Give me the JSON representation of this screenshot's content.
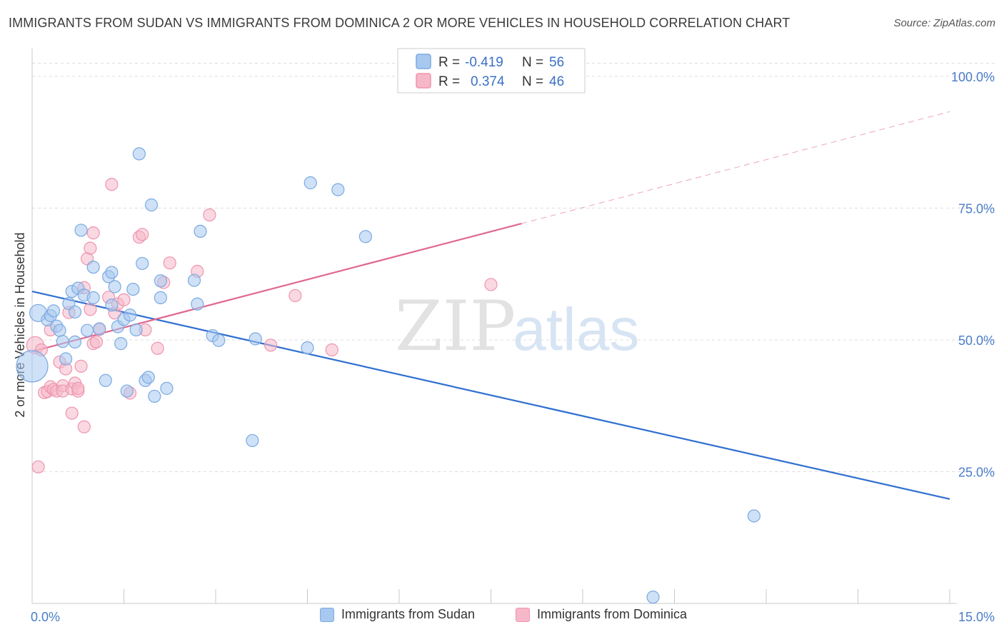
{
  "title": "IMMIGRANTS FROM SUDAN VS IMMIGRANTS FROM DOMINICA 2 OR MORE VEHICLES IN HOUSEHOLD CORRELATION CHART",
  "source": "Source: ZipAtlas.com",
  "watermark": {
    "zip": "ZIP",
    "atlas": "atlas"
  },
  "colors": {
    "sudan_fill": "#a8c8f0",
    "sudan_stroke": "#7aaae0",
    "sudan_line": "#2f6fd0",
    "dominica_fill": "#f6b8c8",
    "dominica_stroke": "#ee94ae",
    "dominica_line": "#e06890",
    "axis_text": "#4a7cc8",
    "grid": "#dddddd"
  },
  "legend": {
    "rows": [
      {
        "r_label": "R =",
        "r_value": "-0.419",
        "n_label": "N =",
        "n_value": "56"
      },
      {
        "r_label": "R =",
        "r_value": "0.374",
        "n_label": "N =",
        "n_value": "46"
      }
    ]
  },
  "bottom_legend": {
    "sudan": "Immigrants from Sudan",
    "dominica": "Immigrants from Dominica"
  },
  "chart_data": {
    "type": "scatter",
    "title": "IMMIGRANTS FROM SUDAN VS IMMIGRANTS FROM DOMINICA 2 OR MORE VEHICLES IN HOUSEHOLD CORRELATION CHART",
    "xlabel": "",
    "ylabel": "2 or more Vehicles in Household",
    "xlim": [
      0,
      15
    ],
    "ylim": [
      0,
      105
    ],
    "x_tick_labels": [
      "0.0%",
      "15.0%"
    ],
    "y_tick_labels": [
      "25.0%",
      "50.0%",
      "75.0%",
      "100.0%"
    ],
    "y_ticks": [
      25,
      50,
      75,
      100
    ],
    "grid": true,
    "legend_position": "top-center",
    "series": [
      {
        "name": "Immigrants from Sudan",
        "r": -0.419,
        "n": 56,
        "trend": {
          "x": [
            0,
            15
          ],
          "y": [
            59.2,
            19.8
          ],
          "dashed_after": null
        },
        "points": [
          {
            "x": 0.1,
            "y": 55.1,
            "big": 1
          },
          {
            "x": 0.0,
            "y": 45.0,
            "big": 2
          },
          {
            "x": 0.25,
            "y": 53.8
          },
          {
            "x": 0.3,
            "y": 54.6
          },
          {
            "x": 0.35,
            "y": 55.5
          },
          {
            "x": 0.4,
            "y": 52.6
          },
          {
            "x": 0.45,
            "y": 51.8
          },
          {
            "x": 0.5,
            "y": 49.7
          },
          {
            "x": 0.55,
            "y": 46.4
          },
          {
            "x": 0.6,
            "y": 56.9
          },
          {
            "x": 0.65,
            "y": 59.2
          },
          {
            "x": 0.7,
            "y": 55.3
          },
          {
            "x": 0.7,
            "y": 49.6
          },
          {
            "x": 0.75,
            "y": 59.8
          },
          {
            "x": 0.8,
            "y": 70.8
          },
          {
            "x": 0.85,
            "y": 58.5
          },
          {
            "x": 0.9,
            "y": 51.8
          },
          {
            "x": 1.0,
            "y": 58.0
          },
          {
            "x": 1.0,
            "y": 63.8
          },
          {
            "x": 1.1,
            "y": 52.1
          },
          {
            "x": 1.2,
            "y": 42.3
          },
          {
            "x": 1.25,
            "y": 62.0
          },
          {
            "x": 1.3,
            "y": 62.8
          },
          {
            "x": 1.3,
            "y": 56.6
          },
          {
            "x": 1.35,
            "y": 60.1
          },
          {
            "x": 1.4,
            "y": 52.5
          },
          {
            "x": 1.45,
            "y": 49.3
          },
          {
            "x": 1.5,
            "y": 53.9
          },
          {
            "x": 1.55,
            "y": 40.3
          },
          {
            "x": 1.6,
            "y": 54.7
          },
          {
            "x": 1.65,
            "y": 59.6
          },
          {
            "x": 1.7,
            "y": 51.9
          },
          {
            "x": 1.75,
            "y": 85.3
          },
          {
            "x": 1.8,
            "y": 64.5
          },
          {
            "x": 1.85,
            "y": 42.3
          },
          {
            "x": 1.9,
            "y": 42.9
          },
          {
            "x": 1.95,
            "y": 75.6
          },
          {
            "x": 2.0,
            "y": 39.3
          },
          {
            "x": 2.1,
            "y": 58.0
          },
          {
            "x": 2.1,
            "y": 61.2
          },
          {
            "x": 2.2,
            "y": 40.8
          },
          {
            "x": 2.65,
            "y": 61.3
          },
          {
            "x": 2.7,
            "y": 56.8
          },
          {
            "x": 2.75,
            "y": 70.6
          },
          {
            "x": 2.95,
            "y": 50.8
          },
          {
            "x": 3.05,
            "y": 49.9
          },
          {
            "x": 3.6,
            "y": 30.9
          },
          {
            "x": 3.65,
            "y": 50.2
          },
          {
            "x": 4.5,
            "y": 48.5
          },
          {
            "x": 4.55,
            "y": 79.8
          },
          {
            "x": 5.0,
            "y": 78.5
          },
          {
            "x": 5.45,
            "y": 69.6
          },
          {
            "x": 11.8,
            "y": 16.6
          },
          {
            "x": 10.15,
            "y": 1.2
          }
        ]
      },
      {
        "name": "Immigrants from Dominica",
        "r": 0.374,
        "n": 46,
        "trend": {
          "x": [
            0,
            15
          ],
          "y": [
            47.8,
            93.3
          ],
          "solid_until_x": 8.0
        },
        "points": [
          {
            "x": 0.05,
            "y": 49.0,
            "big": 1
          },
          {
            "x": 0.1,
            "y": 25.9
          },
          {
            "x": 0.15,
            "y": 48.1
          },
          {
            "x": 0.2,
            "y": 40.0
          },
          {
            "x": 0.25,
            "y": 40.2
          },
          {
            "x": 0.3,
            "y": 51.9
          },
          {
            "x": 0.3,
            "y": 41.1
          },
          {
            "x": 0.35,
            "y": 40.6
          },
          {
            "x": 0.4,
            "y": 40.3
          },
          {
            "x": 0.45,
            "y": 45.8
          },
          {
            "x": 0.5,
            "y": 41.3
          },
          {
            "x": 0.5,
            "y": 40.3
          },
          {
            "x": 0.55,
            "y": 44.5
          },
          {
            "x": 0.6,
            "y": 55.2
          },
          {
            "x": 0.65,
            "y": 40.7
          },
          {
            "x": 0.65,
            "y": 36.1
          },
          {
            "x": 0.7,
            "y": 41.8
          },
          {
            "x": 0.75,
            "y": 40.3
          },
          {
            "x": 0.75,
            "y": 40.8
          },
          {
            "x": 0.8,
            "y": 45.0
          },
          {
            "x": 0.85,
            "y": 33.5
          },
          {
            "x": 0.85,
            "y": 59.9
          },
          {
            "x": 0.9,
            "y": 65.4
          },
          {
            "x": 0.95,
            "y": 55.8
          },
          {
            "x": 0.95,
            "y": 67.4
          },
          {
            "x": 1.0,
            "y": 49.3
          },
          {
            "x": 1.0,
            "y": 70.3
          },
          {
            "x": 1.05,
            "y": 49.6
          },
          {
            "x": 1.1,
            "y": 52.0
          },
          {
            "x": 1.25,
            "y": 58.1
          },
          {
            "x": 1.3,
            "y": 79.5
          },
          {
            "x": 1.35,
            "y": 55.1
          },
          {
            "x": 1.4,
            "y": 56.8
          },
          {
            "x": 1.5,
            "y": 57.6
          },
          {
            "x": 1.6,
            "y": 39.9
          },
          {
            "x": 1.75,
            "y": 69.5
          },
          {
            "x": 1.8,
            "y": 70.0
          },
          {
            "x": 1.85,
            "y": 51.9
          },
          {
            "x": 2.05,
            "y": 48.4
          },
          {
            "x": 2.15,
            "y": 60.9
          },
          {
            "x": 2.25,
            "y": 64.6
          },
          {
            "x": 2.7,
            "y": 63.0
          },
          {
            "x": 2.9,
            "y": 73.7
          },
          {
            "x": 3.9,
            "y": 49.0
          },
          {
            "x": 4.3,
            "y": 58.4
          },
          {
            "x": 4.9,
            "y": 48.1
          },
          {
            "x": 7.5,
            "y": 60.5
          }
        ]
      }
    ]
  }
}
